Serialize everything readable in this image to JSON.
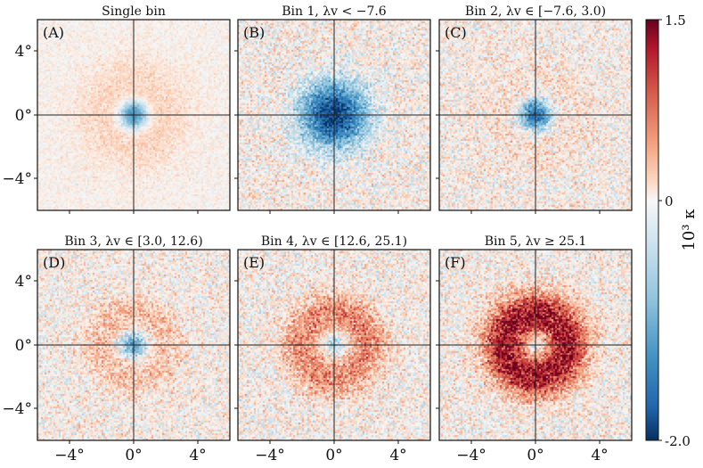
{
  "chart_data": {
    "type": "heatmap",
    "quantity": "convergence kappa",
    "colorbar": {
      "label": "10³ κ",
      "min": -2.0,
      "max": 1.5,
      "tick_labels": [
        "1.5",
        "0",
        "-2.0"
      ],
      "colormap": "RdBu_r",
      "colors": {
        "high": "#67001f",
        "mid": "#f7f7f7",
        "low": "#053061"
      }
    },
    "axes": {
      "range_deg": [
        -6,
        6
      ],
      "x_ticks": [
        "−4°",
        "0°",
        "4°"
      ],
      "y_ticks": [
        "4°",
        "0°",
        "−4°"
      ],
      "x_tick_values": [
        -4,
        0,
        4
      ],
      "y_tick_values": [
        4,
        0,
        -4
      ]
    },
    "panels": [
      {
        "label": "(A)",
        "title": "Single bin",
        "center_kappa": -1.3,
        "core_width_deg": 0.55,
        "ring_kappa": 0.18,
        "ring_radius_deg": 1.9,
        "ring_width_deg": 1.3,
        "noise": 0.12
      },
      {
        "label": "(B)",
        "title": "Bin 1, λv < −7.6",
        "center_kappa": -2.0,
        "core_width_deg": 1.35,
        "ring_kappa": 0.0,
        "ring_radius_deg": 2.0,
        "ring_width_deg": 1.0,
        "noise": 0.3
      },
      {
        "label": "(C)",
        "title": "Bin 2, λv ∈ [−7.6, 3.0)",
        "center_kappa": -1.6,
        "core_width_deg": 0.65,
        "ring_kappa": 0.12,
        "ring_radius_deg": 2.0,
        "ring_width_deg": 1.2,
        "noise": 0.28
      },
      {
        "label": "(D)",
        "title": "Bin 3, λv ∈ [3.0, 12.6)",
        "center_kappa": -0.95,
        "core_width_deg": 0.6,
        "ring_kappa": 0.3,
        "ring_radius_deg": 1.9,
        "ring_width_deg": 0.9,
        "noise": 0.28
      },
      {
        "label": "(E)",
        "title": "Bin 4, λv ∈ [12.6, 25.1)",
        "center_kappa": -0.5,
        "core_width_deg": 0.55,
        "ring_kappa": 0.6,
        "ring_radius_deg": 2.0,
        "ring_width_deg": 0.9,
        "noise": 0.3
      },
      {
        "label": "(F)",
        "title": "Bin 5, λv ≥ 25.1",
        "center_kappa": -0.4,
        "core_width_deg": 0.45,
        "ring_kappa": 1.3,
        "ring_radius_deg": 1.9,
        "ring_width_deg": 1.0,
        "noise": 0.3
      }
    ]
  }
}
